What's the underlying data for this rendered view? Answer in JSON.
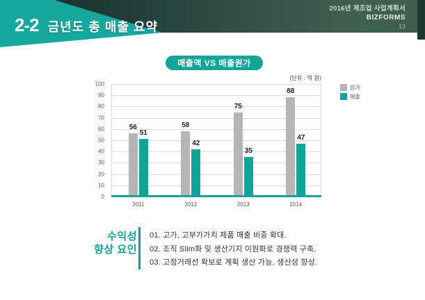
{
  "header": {
    "section_number": "2-2",
    "title": "금년도 총 매출 요약",
    "meta_line": "2016년 제조업 사업계획서",
    "brand": "BIZFORMS",
    "page_number": "13"
  },
  "chart_data": {
    "type": "bar",
    "title": "매출액 VS 매출원가",
    "unit_label": "(단위 : 억 원)",
    "categories": [
      "2011",
      "2012",
      "2013",
      "2014"
    ],
    "series": [
      {
        "name": "원가",
        "color": "#b5b5b5",
        "values": [
          56,
          58,
          75,
          88
        ]
      },
      {
        "name": "매출",
        "color": "#12a39b",
        "values": [
          51,
          42,
          35,
          47
        ]
      }
    ],
    "ylim": [
      0,
      100
    ],
    "ytick_step": 10,
    "grid": true,
    "legend_position": "right-top"
  },
  "factors": {
    "label_line1": "수익성",
    "label_line2": "향상 요인",
    "items": [
      "01. 고가, 고부가가치 제품 매출 비중 확대.",
      "02. 조직 Slim화 및 생산기지 이원화로 경쟁력 구축.",
      "03. 고정거래선 확보로 계획 생산 가능, 생산성 향상."
    ]
  },
  "colors": {
    "accent_teal": "#14a49c",
    "header_triangle_teal": "#14a89f",
    "header_dark_green": "#25443b",
    "bar_gray": "#b5b5b5",
    "bar_teal": "#12a39b",
    "gridline": "#dedede"
  }
}
